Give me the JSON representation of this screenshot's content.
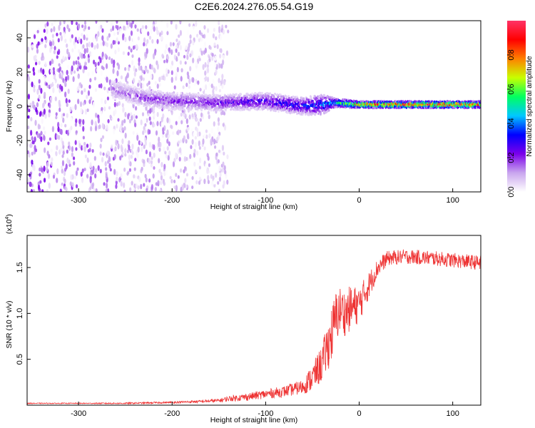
{
  "chart_data": [
    {
      "type": "heatmap",
      "title": "C2E6.2024.276.05.54.G19",
      "xlabel": "Height of straight line (km)",
      "ylabel": "Frequency (Hz)",
      "xlim": [
        -355,
        130
      ],
      "ylim": [
        -50,
        50
      ],
      "x_ticks": [
        -300,
        -200,
        -100,
        0,
        100
      ],
      "x_tick_labels": [
        "-300",
        "-200",
        "-100",
        "0",
        "100"
      ],
      "y_ticks": [
        -40,
        -20,
        0,
        20,
        40
      ],
      "y_tick_labels": [
        "-40",
        "-20",
        "0",
        "20",
        "40"
      ],
      "colorbar": {
        "label": "Normalized spectral amplitude",
        "range": [
          0,
          1
        ],
        "ticks": [
          0,
          0.2,
          0.4,
          0.6,
          0.8
        ],
        "tick_labels": [
          "0.0",
          "0.2",
          "0.4",
          "0.6",
          "0.8"
        ],
        "colormap": [
          "#ffffff",
          "#c9a6ee",
          "#7b00ea",
          "#0000ff",
          "#00c8ff",
          "#00ff60",
          "#c8ff00",
          "#ff8000",
          "#ff0000",
          "#ff3366"
        ]
      },
      "ridge": {
        "x": [
          -265,
          -230,
          -200,
          -150,
          -100,
          -60,
          -40,
          -25,
          0,
          50,
          100,
          130
        ],
        "y": [
          10,
          5,
          3,
          2,
          3,
          0,
          1,
          2,
          1,
          1,
          1,
          1
        ],
        "width_hz": [
          10,
          10,
          10,
          9,
          10,
          10,
          12,
          5,
          4,
          4,
          4,
          4
        ],
        "amplitude": [
          0.15,
          0.2,
          0.22,
          0.25,
          0.3,
          0.35,
          0.4,
          0.55,
          0.85,
          0.95,
          0.95,
          0.9
        ]
      },
      "noise_region": {
        "x": [
          -355,
          -140
        ],
        "amplitude": 0.1
      }
    },
    {
      "type": "line",
      "xlabel": "Height of straight line (km)",
      "ylabel": "SNR (10 * v/v)",
      "y_multiplier": "(x10",
      "y_multiplier_exp": "4",
      "y_multiplier_close": ")",
      "xlim": [
        -355,
        130
      ],
      "ylim": [
        0,
        1.85
      ],
      "x_ticks": [
        -300,
        -200,
        -100,
        0,
        100
      ],
      "x_tick_labels": [
        "-300",
        "-200",
        "-100",
        "0",
        "100"
      ],
      "y_ticks": [
        0.5,
        1.0,
        1.5
      ],
      "y_tick_labels": [
        "0.5",
        "1.0",
        "1.5"
      ],
      "color": "#ee3333",
      "series": [
        {
          "x": [
            -355,
            -300,
            -250,
            -200,
            -170,
            -150,
            -140,
            -120,
            -100,
            -80,
            -60,
            -50,
            -40,
            -30,
            -25,
            -20,
            -15,
            -10,
            0,
            10,
            20,
            30,
            50,
            80,
            100,
            130
          ],
          "y": [
            0.02,
            0.02,
            0.02,
            0.03,
            0.04,
            0.05,
            0.07,
            0.09,
            0.12,
            0.15,
            0.2,
            0.3,
            0.45,
            0.75,
            0.95,
            1.05,
            1.0,
            1.05,
            1.1,
            1.3,
            1.5,
            1.6,
            1.62,
            1.6,
            1.58,
            1.55
          ],
          "noise": [
            0.005,
            0.005,
            0.008,
            0.01,
            0.015,
            0.02,
            0.03,
            0.04,
            0.05,
            0.06,
            0.08,
            0.15,
            0.2,
            0.3,
            0.3,
            0.25,
            0.25,
            0.25,
            0.2,
            0.15,
            0.1,
            0.08,
            0.08,
            0.08,
            0.08,
            0.08
          ]
        }
      ]
    }
  ]
}
